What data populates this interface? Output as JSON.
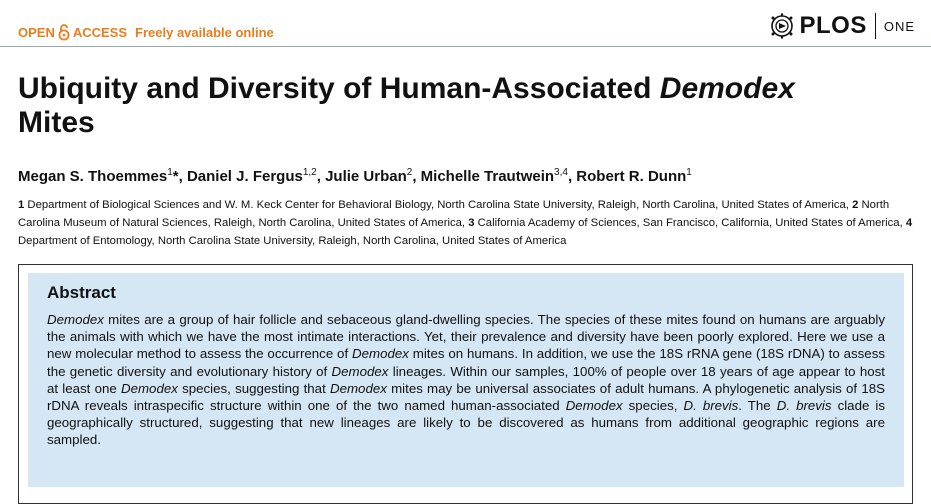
{
  "header": {
    "open": "OPEN",
    "access": "ACCESS",
    "freely": "Freely available online",
    "publisher": "PLOS",
    "journal": "ONE",
    "colors": {
      "accent": "#e87e1b",
      "abstract_bg": "#d5e7f4"
    }
  },
  "title": {
    "main": "Ubiquity and Diversity of Human-Associated ",
    "italic": "Demodex",
    "end": "Mites"
  },
  "authors": [
    {
      "name": "Megan S. Thoemmes",
      "sup": "1",
      "mark": "*"
    },
    {
      "name": "Daniel J. Fergus",
      "sup": "1,2",
      "mark": ""
    },
    {
      "name": "Julie Urban",
      "sup": "2",
      "mark": ""
    },
    {
      "name": "Michelle Trautwein",
      "sup": "3,4",
      "mark": ""
    },
    {
      "name": "Robert R. Dunn",
      "sup": "1",
      "mark": ""
    }
  ],
  "affiliations": [
    {
      "num": "1",
      "text": "Department of Biological Sciences and W. M. Keck Center for Behavioral Biology, North Carolina State University, Raleigh, North Carolina, United States of America,"
    },
    {
      "num": "2",
      "text": "North Carolina Museum of Natural Sciences, Raleigh, North Carolina, United States of America,"
    },
    {
      "num": "3",
      "text": "California Academy of Sciences, San Francisco, California, United States of America,"
    },
    {
      "num": "4",
      "text": "Department of Entomology, North Carolina State University, Raleigh, North Carolina, United States of America"
    }
  ],
  "abstract": {
    "heading": "Abstract",
    "segments": [
      {
        "t": "Demodex",
        "i": true
      },
      {
        "t": " mites are a group of hair follicle and sebaceous gland-dwelling species. The species of these mites found on humans are arguably the animals with which we have the most intimate interactions. Yet, their prevalence and diversity have been poorly explored. Here we use a new molecular method to assess the occurrence of ",
        "i": false
      },
      {
        "t": "Demodex",
        "i": true
      },
      {
        "t": " mites on humans. In addition, we use the 18S rRNA gene (18S rDNA) to assess the genetic diversity and evolutionary history of ",
        "i": false
      },
      {
        "t": "Demodex",
        "i": true
      },
      {
        "t": " lineages. Within our samples, 100% of people over 18 years of age appear to host at least one ",
        "i": false
      },
      {
        "t": "Demodex",
        "i": true
      },
      {
        "t": " species, suggesting that ",
        "i": false
      },
      {
        "t": "Demodex",
        "i": true
      },
      {
        "t": " mites may be universal associates of adult humans. A phylogenetic analysis of 18S rDNA reveals intraspecific structure within one of the two named human-associated ",
        "i": false
      },
      {
        "t": "Demodex",
        "i": true
      },
      {
        "t": " species, ",
        "i": false
      },
      {
        "t": "D. brevis",
        "i": true
      },
      {
        "t": ". The ",
        "i": false
      },
      {
        "t": "D. brevis",
        "i": true
      },
      {
        "t": " clade is geographically structured, suggesting that new lineages are likely to be discovered as humans from additional geographic regions are sampled.",
        "i": false
      }
    ]
  }
}
